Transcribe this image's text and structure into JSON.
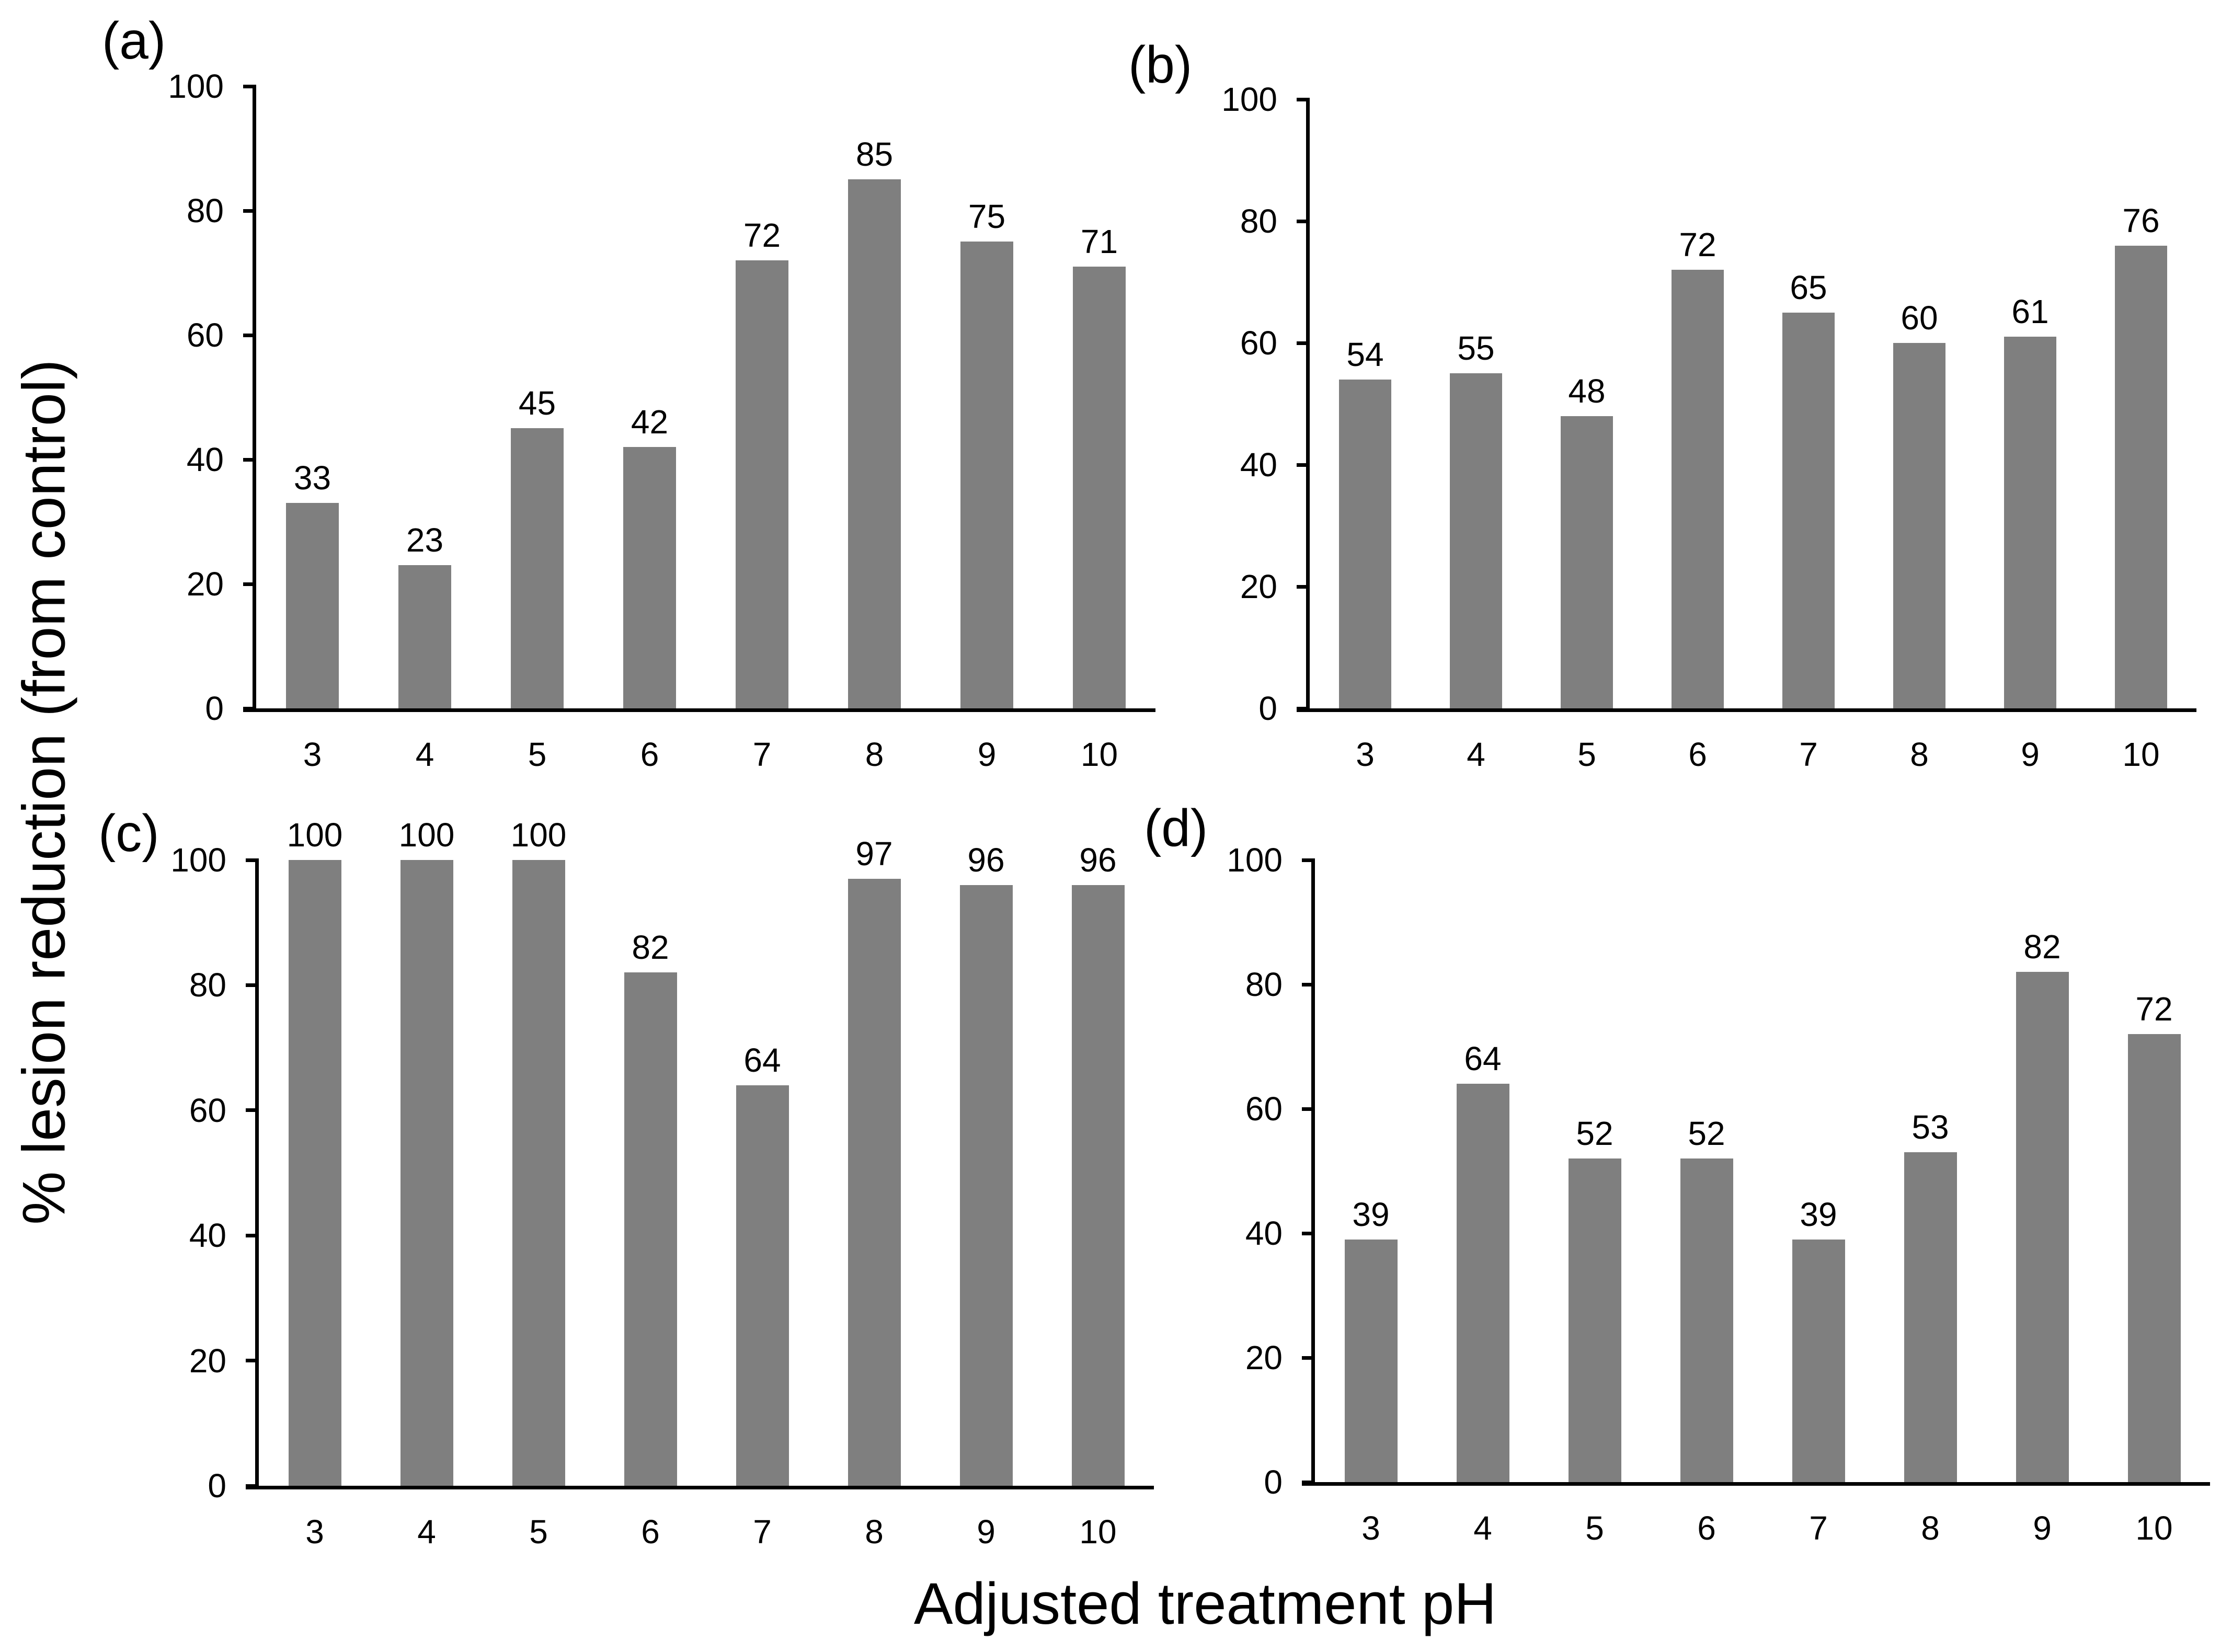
{
  "figure": {
    "ylabel": "% lesion reduction (from control)",
    "xlabel": "Adjusted treatment pH",
    "bar_color": "#7f7f7f",
    "axis_color": "#000000",
    "background": "#ffffff"
  },
  "chart_data": [
    {
      "type": "bar",
      "panel_label": "(a)",
      "title": "",
      "xlabel": "Adjusted treatment pH",
      "ylabel": "% lesion reduction (from control)",
      "categories": [
        "3",
        "4",
        "5",
        "6",
        "7",
        "8",
        "9",
        "10"
      ],
      "values": [
        33,
        23,
        45,
        42,
        72,
        85,
        75,
        71
      ],
      "ylim": [
        0,
        100
      ],
      "yticks": [
        0,
        20,
        40,
        60,
        80,
        100
      ],
      "grid": false,
      "legend": false,
      "data_labels": true
    },
    {
      "type": "bar",
      "panel_label": "(b)",
      "title": "",
      "xlabel": "Adjusted treatment pH",
      "ylabel": "% lesion reduction (from control)",
      "categories": [
        "3",
        "4",
        "5",
        "6",
        "7",
        "8",
        "9",
        "10"
      ],
      "values": [
        54,
        55,
        48,
        72,
        65,
        60,
        61,
        76
      ],
      "ylim": [
        0,
        100
      ],
      "yticks": [
        0,
        20,
        40,
        60,
        80,
        100
      ],
      "grid": false,
      "legend": false,
      "data_labels": true
    },
    {
      "type": "bar",
      "panel_label": "(c)",
      "title": "",
      "xlabel": "Adjusted treatment pH",
      "ylabel": "% lesion reduction (from control)",
      "categories": [
        "3",
        "4",
        "5",
        "6",
        "7",
        "8",
        "9",
        "10"
      ],
      "values": [
        100,
        100,
        100,
        82,
        64,
        97,
        96,
        96
      ],
      "ylim": [
        0,
        100
      ],
      "yticks": [
        0,
        20,
        40,
        60,
        80,
        100
      ],
      "grid": false,
      "legend": false,
      "data_labels": true
    },
    {
      "type": "bar",
      "panel_label": "(d)",
      "title": "",
      "xlabel": "Adjusted treatment pH",
      "ylabel": "% lesion reduction (from control)",
      "categories": [
        "3",
        "4",
        "5",
        "6",
        "7",
        "8",
        "9",
        "10"
      ],
      "values": [
        39,
        64,
        52,
        52,
        39,
        53,
        82,
        72
      ],
      "ylim": [
        0,
        100
      ],
      "yticks": [
        0,
        20,
        40,
        60,
        80,
        100
      ],
      "grid": false,
      "legend": false,
      "data_labels": true
    }
  ]
}
